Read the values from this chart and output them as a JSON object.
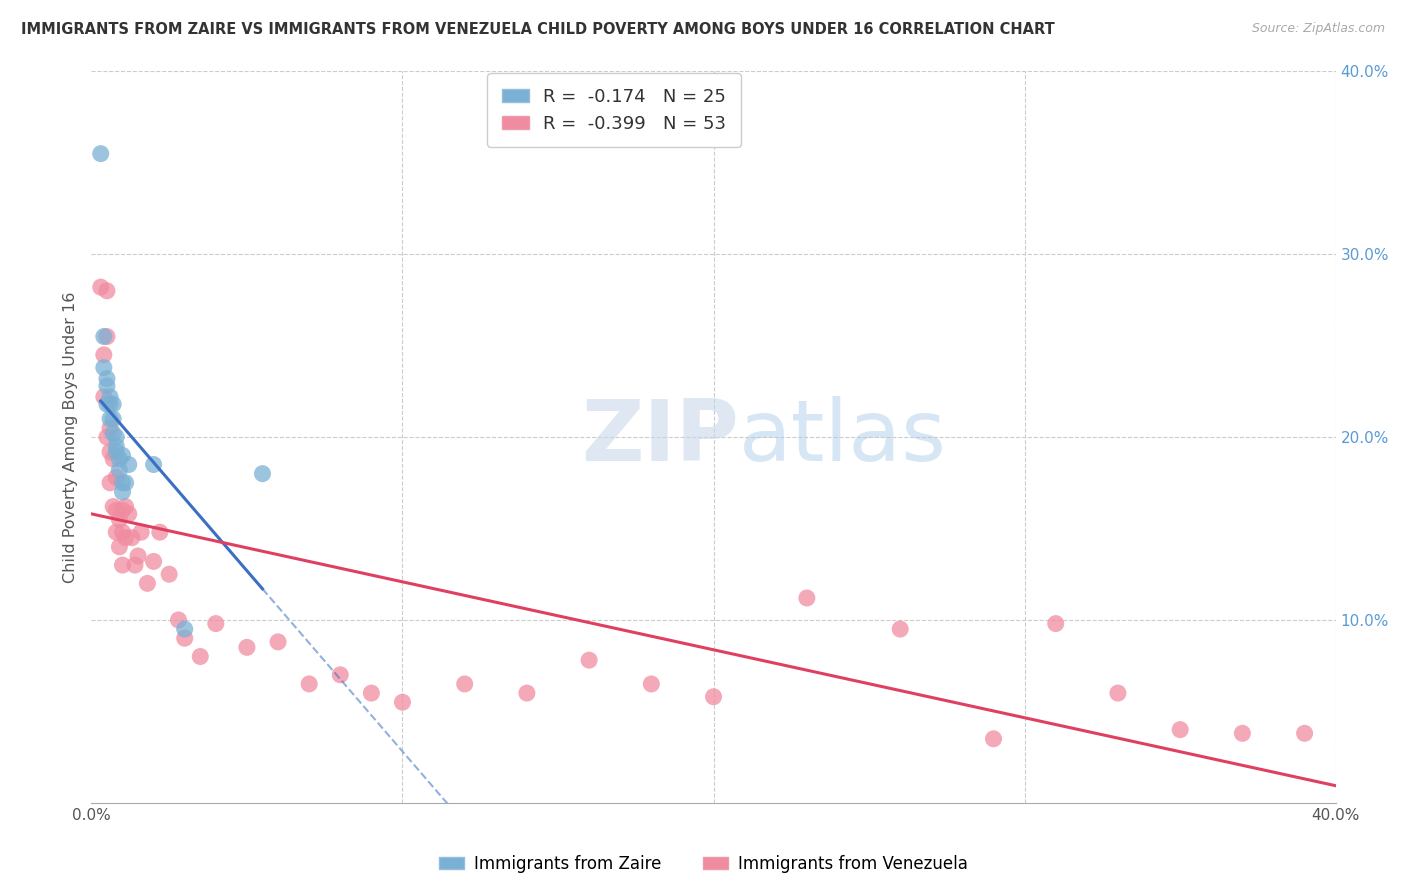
{
  "title": "IMMIGRANTS FROM ZAIRE VS IMMIGRANTS FROM VENEZUELA CHILD POVERTY AMONG BOYS UNDER 16 CORRELATION CHART",
  "source": "Source: ZipAtlas.com",
  "ylabel": "Child Poverty Among Boys Under 16",
  "xlim": [
    0.0,
    0.4
  ],
  "ylim": [
    0.0,
    0.4
  ],
  "xticks": [
    0.0,
    0.1,
    0.2,
    0.3,
    0.4
  ],
  "yticks": [
    0.0,
    0.1,
    0.2,
    0.3,
    0.4
  ],
  "zaire_color": "#7ab0d4",
  "venezuela_color": "#f08ca0",
  "zaire_line_color": "#3a6fc4",
  "venezuela_line_color": "#e04060",
  "background_color": "#ffffff",
  "grid_color": "#cccccc",
  "watermark_zip": "ZIP",
  "watermark_atlas": "atlas",
  "zaire_R": -0.174,
  "zaire_N": 25,
  "venezuela_R": -0.399,
  "venezuela_N": 53,
  "zaire_x": [
    0.003,
    0.004,
    0.004,
    0.005,
    0.005,
    0.005,
    0.006,
    0.006,
    0.006,
    0.007,
    0.007,
    0.007,
    0.008,
    0.008,
    0.008,
    0.009,
    0.009,
    0.01,
    0.01,
    0.01,
    0.011,
    0.012,
    0.02,
    0.03,
    0.055
  ],
  "zaire_y": [
    0.355,
    0.255,
    0.238,
    0.232,
    0.228,
    0.218,
    0.222,
    0.218,
    0.21,
    0.218,
    0.21,
    0.202,
    0.2,
    0.195,
    0.192,
    0.188,
    0.182,
    0.19,
    0.175,
    0.17,
    0.175,
    0.185,
    0.185,
    0.095,
    0.18
  ],
  "venezuela_x": [
    0.003,
    0.004,
    0.004,
    0.005,
    0.005,
    0.005,
    0.006,
    0.006,
    0.006,
    0.007,
    0.007,
    0.008,
    0.008,
    0.008,
    0.009,
    0.009,
    0.01,
    0.01,
    0.01,
    0.011,
    0.011,
    0.012,
    0.013,
    0.014,
    0.015,
    0.016,
    0.018,
    0.02,
    0.022,
    0.025,
    0.028,
    0.03,
    0.035,
    0.04,
    0.05,
    0.06,
    0.07,
    0.08,
    0.09,
    0.1,
    0.12,
    0.14,
    0.16,
    0.18,
    0.2,
    0.23,
    0.26,
    0.29,
    0.31,
    0.33,
    0.35,
    0.37,
    0.39
  ],
  "venezuela_y": [
    0.282,
    0.245,
    0.222,
    0.28,
    0.255,
    0.2,
    0.205,
    0.192,
    0.175,
    0.188,
    0.162,
    0.178,
    0.16,
    0.148,
    0.155,
    0.14,
    0.16,
    0.148,
    0.13,
    0.162,
    0.145,
    0.158,
    0.145,
    0.13,
    0.135,
    0.148,
    0.12,
    0.132,
    0.148,
    0.125,
    0.1,
    0.09,
    0.08,
    0.098,
    0.085,
    0.088,
    0.065,
    0.07,
    0.06,
    0.055,
    0.065,
    0.06,
    0.078,
    0.065,
    0.058,
    0.112,
    0.095,
    0.035,
    0.098,
    0.06,
    0.04,
    0.038,
    0.038
  ]
}
